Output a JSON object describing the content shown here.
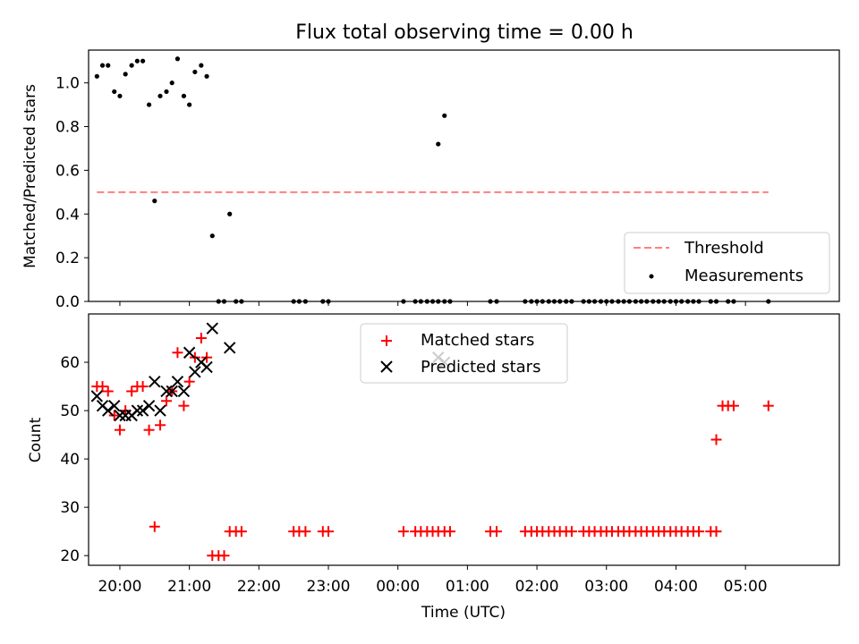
{
  "chart_data": [
    {
      "type": "scatter",
      "title": "Flux total observing time = 0.00 h",
      "xlabel": "",
      "ylabel": "Matched/Predicted stars",
      "xlim": [
        -0.45,
        10.35
      ],
      "ylim": [
        0,
        1.15
      ],
      "yticks": [
        0.0,
        0.2,
        0.4,
        0.6,
        0.8,
        1.0
      ],
      "ytick_labels": [
        "0.0",
        "0.2",
        "0.4",
        "0.6",
        "0.8",
        "1.0"
      ],
      "legend_position": "lower-right",
      "threshold": {
        "name": "Threshold",
        "color": "#ff7f7f",
        "y": 0.5,
        "x": [
          -0.33,
          9.33
        ]
      },
      "series": [
        {
          "name": "Measurements",
          "color": "#000000",
          "marker": "dot",
          "points": [
            [
              -0.33,
              1.03
            ],
            [
              -0.25,
              1.08
            ],
            [
              -0.17,
              1.08
            ],
            [
              -0.08,
              0.96
            ],
            [
              0.0,
              0.94
            ],
            [
              0.08,
              1.04
            ],
            [
              0.17,
              1.08
            ],
            [
              0.25,
              1.1
            ],
            [
              0.33,
              1.1
            ],
            [
              0.42,
              0.9
            ],
            [
              0.5,
              0.46
            ],
            [
              0.58,
              0.94
            ],
            [
              0.67,
              0.96
            ],
            [
              0.75,
              1.0
            ],
            [
              0.83,
              1.11
            ],
            [
              0.92,
              0.94
            ],
            [
              1.0,
              0.9
            ],
            [
              1.08,
              1.05
            ],
            [
              1.17,
              1.08
            ],
            [
              1.25,
              1.03
            ],
            [
              1.33,
              0.3
            ],
            [
              1.58,
              0.4
            ],
            [
              4.58,
              0.72
            ],
            [
              4.67,
              0.85
            ],
            [
              1.42,
              0.0
            ],
            [
              1.5,
              0.0
            ],
            [
              1.67,
              0.0
            ],
            [
              1.75,
              0.0
            ],
            [
              2.5,
              0.0
            ],
            [
              2.58,
              0.0
            ],
            [
              2.67,
              0.0
            ],
            [
              2.92,
              0.0
            ],
            [
              3.0,
              0.0
            ],
            [
              4.08,
              0.0
            ],
            [
              4.25,
              0.0
            ],
            [
              4.33,
              0.0
            ],
            [
              4.42,
              0.0
            ],
            [
              4.5,
              0.0
            ],
            [
              4.58,
              0.0
            ],
            [
              4.67,
              0.0
            ],
            [
              4.75,
              0.0
            ],
            [
              5.33,
              0.0
            ],
            [
              5.42,
              0.0
            ],
            [
              5.83,
              0.0
            ],
            [
              5.92,
              0.0
            ],
            [
              6.0,
              0.0
            ],
            [
              6.08,
              0.0
            ],
            [
              6.17,
              0.0
            ],
            [
              6.25,
              0.0
            ],
            [
              6.33,
              0.0
            ],
            [
              6.42,
              0.0
            ],
            [
              6.5,
              0.0
            ],
            [
              6.67,
              0.0
            ],
            [
              6.75,
              0.0
            ],
            [
              6.83,
              0.0
            ],
            [
              6.92,
              0.0
            ],
            [
              7.0,
              0.0
            ],
            [
              7.08,
              0.0
            ],
            [
              7.17,
              0.0
            ],
            [
              7.25,
              0.0
            ],
            [
              7.33,
              0.0
            ],
            [
              7.42,
              0.0
            ],
            [
              7.5,
              0.0
            ],
            [
              7.58,
              0.0
            ],
            [
              7.67,
              0.0
            ],
            [
              7.75,
              0.0
            ],
            [
              7.83,
              0.0
            ],
            [
              7.92,
              0.0
            ],
            [
              8.0,
              0.0
            ],
            [
              8.08,
              0.0
            ],
            [
              8.17,
              0.0
            ],
            [
              8.25,
              0.0
            ],
            [
              8.33,
              0.0
            ],
            [
              8.5,
              0.0
            ],
            [
              8.58,
              0.0
            ],
            [
              8.75,
              0.0
            ],
            [
              8.83,
              0.0
            ],
            [
              9.33,
              0.0
            ]
          ]
        }
      ]
    },
    {
      "type": "scatter",
      "title": "",
      "xlabel": "Time (UTC)",
      "ylabel": "Count",
      "xlim": [
        -0.45,
        10.35
      ],
      "ylim": [
        18,
        70
      ],
      "yticks": [
        20,
        30,
        40,
        50,
        60
      ],
      "ytick_labels": [
        "20",
        "30",
        "40",
        "50",
        "60"
      ],
      "xticks": [
        0,
        1,
        2,
        3,
        4,
        5,
        6,
        7,
        8,
        9
      ],
      "xtick_labels": [
        "20:00",
        "21:00",
        "22:00",
        "23:00",
        "00:00",
        "01:00",
        "02:00",
        "03:00",
        "04:00",
        "05:00"
      ],
      "legend_position": "upper-center",
      "series": [
        {
          "name": "Matched stars",
          "color": "#ff0000",
          "marker": "plus",
          "points": [
            [
              -0.33,
              55
            ],
            [
              -0.25,
              55
            ],
            [
              -0.17,
              54
            ],
            [
              -0.08,
              49
            ],
            [
              0.0,
              46
            ],
            [
              0.08,
              50
            ],
            [
              0.17,
              54
            ],
            [
              0.25,
              55
            ],
            [
              0.33,
              55
            ],
            [
              0.42,
              46
            ],
            [
              0.5,
              26
            ],
            [
              0.58,
              47
            ],
            [
              0.67,
              52
            ],
            [
              0.75,
              54
            ],
            [
              0.83,
              62
            ],
            [
              0.92,
              51
            ],
            [
              1.0,
              56
            ],
            [
              1.08,
              61
            ],
            [
              1.17,
              65
            ],
            [
              1.25,
              61
            ],
            [
              1.33,
              20
            ],
            [
              1.42,
              20
            ],
            [
              1.5,
              20
            ],
            [
              1.58,
              25
            ],
            [
              1.67,
              25
            ],
            [
              1.75,
              25
            ],
            [
              2.5,
              25
            ],
            [
              2.58,
              25
            ],
            [
              2.67,
              25
            ],
            [
              2.92,
              25
            ],
            [
              3.0,
              25
            ],
            [
              4.08,
              25
            ],
            [
              4.25,
              25
            ],
            [
              4.33,
              25
            ],
            [
              4.42,
              25
            ],
            [
              4.5,
              25
            ],
            [
              4.58,
              25
            ],
            [
              4.67,
              25
            ],
            [
              4.75,
              25
            ],
            [
              5.33,
              25
            ],
            [
              5.42,
              25
            ],
            [
              5.83,
              25
            ],
            [
              5.92,
              25
            ],
            [
              6.0,
              25
            ],
            [
              6.08,
              25
            ],
            [
              6.17,
              25
            ],
            [
              6.25,
              25
            ],
            [
              6.33,
              25
            ],
            [
              6.42,
              25
            ],
            [
              6.5,
              25
            ],
            [
              6.67,
              25
            ],
            [
              6.75,
              25
            ],
            [
              6.83,
              25
            ],
            [
              6.92,
              25
            ],
            [
              7.0,
              25
            ],
            [
              7.08,
              25
            ],
            [
              7.17,
              25
            ],
            [
              7.25,
              25
            ],
            [
              7.33,
              25
            ],
            [
              7.42,
              25
            ],
            [
              7.5,
              25
            ],
            [
              7.58,
              25
            ],
            [
              7.67,
              25
            ],
            [
              7.75,
              25
            ],
            [
              7.83,
              25
            ],
            [
              7.92,
              25
            ],
            [
              8.0,
              25
            ],
            [
              8.08,
              25
            ],
            [
              8.17,
              25
            ],
            [
              8.25,
              25
            ],
            [
              8.33,
              25
            ],
            [
              8.5,
              25
            ],
            [
              8.58,
              25
            ],
            [
              8.58,
              44
            ],
            [
              8.67,
              51
            ],
            [
              8.75,
              51
            ],
            [
              8.83,
              51
            ],
            [
              9.33,
              51
            ]
          ]
        },
        {
          "name": "Predicted stars",
          "color": "#000000",
          "marker": "x",
          "points": [
            [
              -0.33,
              53
            ],
            [
              -0.25,
              51
            ],
            [
              -0.17,
              50
            ],
            [
              -0.08,
              51
            ],
            [
              0.0,
              49
            ],
            [
              0.08,
              49
            ],
            [
              0.17,
              49
            ],
            [
              0.25,
              50
            ],
            [
              0.33,
              50
            ],
            [
              0.42,
              51
            ],
            [
              0.5,
              56
            ],
            [
              0.58,
              50
            ],
            [
              0.67,
              54
            ],
            [
              0.75,
              54
            ],
            [
              0.83,
              56
            ],
            [
              0.92,
              54
            ],
            [
              1.0,
              62
            ],
            [
              1.08,
              58
            ],
            [
              1.17,
              60
            ],
            [
              1.25,
              59
            ],
            [
              1.33,
              67
            ],
            [
              1.58,
              63
            ],
            [
              4.58,
              61
            ],
            [
              4.67,
              60
            ]
          ]
        }
      ]
    }
  ]
}
